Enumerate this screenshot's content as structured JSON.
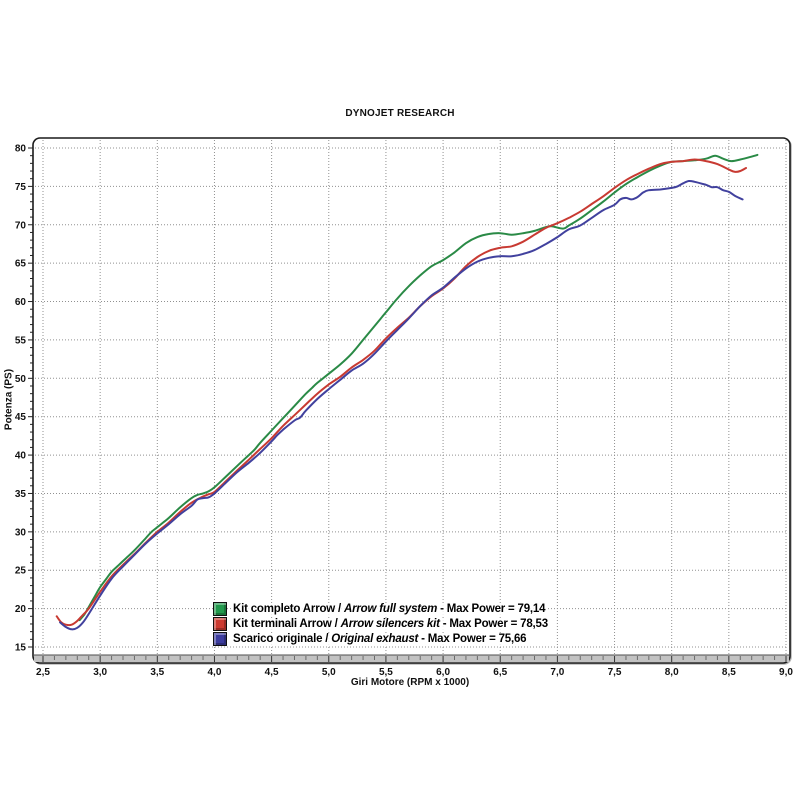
{
  "title": "DYNOJET RESEARCH",
  "chart_data": {
    "type": "line",
    "title": "DYNOJET RESEARCH",
    "xlabel": "Giri Motore (RPM x 1000)",
    "ylabel": "Potenza (PS)",
    "xlim": [
      2.5,
      9.0
    ],
    "ylim": [
      15,
      80
    ],
    "grid": "dotted",
    "legend_position": "inside-bottom-left",
    "x_ticks": [
      2.5,
      3.0,
      3.5,
      4.0,
      4.5,
      5.0,
      5.5,
      6.0,
      6.5,
      7.0,
      7.5,
      8.0,
      8.5,
      9.0
    ],
    "x_tick_labels": [
      "2,5",
      "3,0",
      "3,5",
      "4,0",
      "4,5",
      "5,0",
      "5,5",
      "6,0",
      "6,5",
      "7,0",
      "7,5",
      "8,0",
      "8,5",
      "9,0"
    ],
    "y_ticks": [
      15,
      20,
      25,
      30,
      35,
      40,
      45,
      50,
      55,
      60,
      65,
      70,
      75,
      80
    ],
    "y_tick_labels": [
      "15",
      "20",
      "25",
      "30",
      "35",
      "40",
      "45",
      "50",
      "55",
      "60",
      "65",
      "70",
      "75",
      "80"
    ],
    "x_minor_step": 0.1,
    "y_minor_step": 1,
    "series": [
      {
        "name": "Kit completo Arrow",
        "name_en": "Arrow full system",
        "max_power": 79.14,
        "color": "#2a8a46",
        "points": [
          [
            2.82,
            18.5
          ],
          [
            2.86,
            19.2
          ],
          [
            2.9,
            20.2
          ],
          [
            2.95,
            21.5
          ],
          [
            3.0,
            22.8
          ],
          [
            3.05,
            23.8
          ],
          [
            3.1,
            24.8
          ],
          [
            3.15,
            25.5
          ],
          [
            3.2,
            26.2
          ],
          [
            3.3,
            27.6
          ],
          [
            3.4,
            29.2
          ],
          [
            3.45,
            30.0
          ],
          [
            3.5,
            30.6
          ],
          [
            3.55,
            31.2
          ],
          [
            3.6,
            31.8
          ],
          [
            3.7,
            33.2
          ],
          [
            3.8,
            34.4
          ],
          [
            3.85,
            34.8
          ],
          [
            3.9,
            35.0
          ],
          [
            3.95,
            35.3
          ],
          [
            4.0,
            35.8
          ],
          [
            4.1,
            37.2
          ],
          [
            4.2,
            38.6
          ],
          [
            4.3,
            40.0
          ],
          [
            4.35,
            40.7
          ],
          [
            4.4,
            41.6
          ],
          [
            4.5,
            43.2
          ],
          [
            4.6,
            44.8
          ],
          [
            4.7,
            46.4
          ],
          [
            4.8,
            48.0
          ],
          [
            4.85,
            48.7
          ],
          [
            4.9,
            49.4
          ],
          [
            5.0,
            50.6
          ],
          [
            5.1,
            51.8
          ],
          [
            5.2,
            53.2
          ],
          [
            5.3,
            55.0
          ],
          [
            5.4,
            56.8
          ],
          [
            5.5,
            58.6
          ],
          [
            5.6,
            60.4
          ],
          [
            5.7,
            62.0
          ],
          [
            5.8,
            63.4
          ],
          [
            5.9,
            64.6
          ],
          [
            6.0,
            65.4
          ],
          [
            6.1,
            66.4
          ],
          [
            6.2,
            67.6
          ],
          [
            6.3,
            68.4
          ],
          [
            6.4,
            68.8
          ],
          [
            6.5,
            68.9
          ],
          [
            6.6,
            68.7
          ],
          [
            6.7,
            68.9
          ],
          [
            6.8,
            69.2
          ],
          [
            6.9,
            69.7
          ],
          [
            6.95,
            69.8
          ],
          [
            7.05,
            69.5
          ],
          [
            7.1,
            69.9
          ],
          [
            7.2,
            70.8
          ],
          [
            7.3,
            71.9
          ],
          [
            7.4,
            73.0
          ],
          [
            7.5,
            74.2
          ],
          [
            7.6,
            75.3
          ],
          [
            7.7,
            76.2
          ],
          [
            7.8,
            77.0
          ],
          [
            7.9,
            77.7
          ],
          [
            8.0,
            78.2
          ],
          [
            8.1,
            78.3
          ],
          [
            8.2,
            78.4
          ],
          [
            8.3,
            78.6
          ],
          [
            8.38,
            79.0
          ],
          [
            8.45,
            78.6
          ],
          [
            8.52,
            78.3
          ],
          [
            8.6,
            78.5
          ],
          [
            8.68,
            78.8
          ],
          [
            8.75,
            79.1
          ]
        ]
      },
      {
        "name": "Kit terminali Arrow",
        "name_en": "Arrow silencers kit",
        "max_power": 78.53,
        "color": "#c83a32",
        "points": [
          [
            2.62,
            19.0
          ],
          [
            2.66,
            18.2
          ],
          [
            2.7,
            17.9
          ],
          [
            2.75,
            17.9
          ],
          [
            2.8,
            18.4
          ],
          [
            2.85,
            19.2
          ],
          [
            2.9,
            20.0
          ],
          [
            3.0,
            22.2
          ],
          [
            3.1,
            24.2
          ],
          [
            3.2,
            25.7
          ],
          [
            3.3,
            27.1
          ],
          [
            3.4,
            28.6
          ],
          [
            3.5,
            30.0
          ],
          [
            3.6,
            31.2
          ],
          [
            3.7,
            32.6
          ],
          [
            3.8,
            33.8
          ],
          [
            3.9,
            34.6
          ],
          [
            3.95,
            34.9
          ],
          [
            4.0,
            35.2
          ],
          [
            4.1,
            36.6
          ],
          [
            4.2,
            38.0
          ],
          [
            4.3,
            39.4
          ],
          [
            4.4,
            40.8
          ],
          [
            4.5,
            42.2
          ],
          [
            4.6,
            43.8
          ],
          [
            4.7,
            45.2
          ],
          [
            4.8,
            46.6
          ],
          [
            4.9,
            48.0
          ],
          [
            5.0,
            49.2
          ],
          [
            5.1,
            50.2
          ],
          [
            5.2,
            51.4
          ],
          [
            5.3,
            52.4
          ],
          [
            5.4,
            53.6
          ],
          [
            5.5,
            55.2
          ],
          [
            5.6,
            56.6
          ],
          [
            5.7,
            57.9
          ],
          [
            5.8,
            59.4
          ],
          [
            5.9,
            60.7
          ],
          [
            6.0,
            61.7
          ],
          [
            6.1,
            63.0
          ],
          [
            6.2,
            64.6
          ],
          [
            6.3,
            65.8
          ],
          [
            6.4,
            66.6
          ],
          [
            6.5,
            67.0
          ],
          [
            6.6,
            67.2
          ],
          [
            6.7,
            67.8
          ],
          [
            6.8,
            68.7
          ],
          [
            6.9,
            69.6
          ],
          [
            7.0,
            70.2
          ],
          [
            7.1,
            70.9
          ],
          [
            7.2,
            71.7
          ],
          [
            7.3,
            72.7
          ],
          [
            7.4,
            73.7
          ],
          [
            7.5,
            74.8
          ],
          [
            7.6,
            75.8
          ],
          [
            7.7,
            76.6
          ],
          [
            7.8,
            77.3
          ],
          [
            7.9,
            77.9
          ],
          [
            8.0,
            78.2
          ],
          [
            8.1,
            78.3
          ],
          [
            8.2,
            78.5
          ],
          [
            8.3,
            78.3
          ],
          [
            8.4,
            77.9
          ],
          [
            8.5,
            77.2
          ],
          [
            8.55,
            76.9
          ],
          [
            8.6,
            77.0
          ],
          [
            8.65,
            77.4
          ]
        ]
      },
      {
        "name": "Scarico originale",
        "name_en": "Original exhaust",
        "max_power": 75.66,
        "color": "#41419e",
        "points": [
          [
            2.65,
            18.2
          ],
          [
            2.7,
            17.6
          ],
          [
            2.75,
            17.3
          ],
          [
            2.8,
            17.5
          ],
          [
            2.85,
            18.2
          ],
          [
            2.9,
            19.3
          ],
          [
            3.0,
            21.7
          ],
          [
            3.1,
            23.9
          ],
          [
            3.2,
            25.5
          ],
          [
            3.3,
            27.0
          ],
          [
            3.4,
            28.5
          ],
          [
            3.5,
            29.8
          ],
          [
            3.6,
            31.0
          ],
          [
            3.7,
            32.3
          ],
          [
            3.8,
            33.4
          ],
          [
            3.85,
            34.2
          ],
          [
            3.9,
            34.4
          ],
          [
            3.95,
            34.5
          ],
          [
            4.0,
            35.0
          ],
          [
            4.1,
            36.4
          ],
          [
            4.2,
            37.8
          ],
          [
            4.3,
            39.0
          ],
          [
            4.4,
            40.3
          ],
          [
            4.5,
            41.8
          ],
          [
            4.55,
            42.6
          ],
          [
            4.6,
            43.3
          ],
          [
            4.7,
            44.5
          ],
          [
            4.75,
            44.9
          ],
          [
            4.8,
            45.8
          ],
          [
            4.9,
            47.3
          ],
          [
            5.0,
            48.6
          ],
          [
            5.1,
            49.8
          ],
          [
            5.2,
            51.0
          ],
          [
            5.3,
            51.9
          ],
          [
            5.4,
            53.2
          ],
          [
            5.5,
            54.8
          ],
          [
            5.6,
            56.3
          ],
          [
            5.7,
            57.8
          ],
          [
            5.8,
            59.4
          ],
          [
            5.9,
            60.8
          ],
          [
            6.0,
            61.8
          ],
          [
            6.1,
            63.1
          ],
          [
            6.2,
            64.3
          ],
          [
            6.3,
            65.2
          ],
          [
            6.4,
            65.7
          ],
          [
            6.5,
            65.9
          ],
          [
            6.6,
            65.9
          ],
          [
            6.7,
            66.2
          ],
          [
            6.8,
            66.7
          ],
          [
            6.9,
            67.5
          ],
          [
            7.0,
            68.4
          ],
          [
            7.1,
            69.4
          ],
          [
            7.2,
            69.9
          ],
          [
            7.3,
            70.9
          ],
          [
            7.4,
            71.9
          ],
          [
            7.5,
            72.6
          ],
          [
            7.55,
            73.3
          ],
          [
            7.6,
            73.5
          ],
          [
            7.65,
            73.3
          ],
          [
            7.7,
            73.6
          ],
          [
            7.75,
            74.2
          ],
          [
            7.8,
            74.5
          ],
          [
            7.9,
            74.6
          ],
          [
            8.0,
            74.8
          ],
          [
            8.05,
            75.0
          ],
          [
            8.1,
            75.4
          ],
          [
            8.15,
            75.7
          ],
          [
            8.2,
            75.6
          ],
          [
            8.3,
            75.2
          ],
          [
            8.35,
            74.9
          ],
          [
            8.4,
            74.9
          ],
          [
            8.45,
            74.5
          ],
          [
            8.5,
            74.3
          ],
          [
            8.55,
            73.8
          ],
          [
            8.62,
            73.3
          ]
        ]
      }
    ]
  },
  "legend": {
    "items": [
      {
        "pre": "Kit completo Arrow / ",
        "italic": "Arrow full system",
        "post": " - Max Power = 79,14",
        "color": "#22994d"
      },
      {
        "pre": "Kit terminali Arrow / ",
        "italic": "Arrow silencers kit",
        "post": " - Max Power = 78,53",
        "color": "#cc3a30"
      },
      {
        "pre": "Scarico originale / ",
        "italic": "Original exhaust",
        "post": " -  Max Power = 75,66",
        "color": "#3c3c9e"
      }
    ]
  },
  "colors": {
    "grid": "#909090",
    "frame": "#1a1a1a",
    "band_fill": "#c2c2c2",
    "band_tick": "#6b6b6b",
    "band_major_tick": "#333333",
    "text": "#111111"
  }
}
